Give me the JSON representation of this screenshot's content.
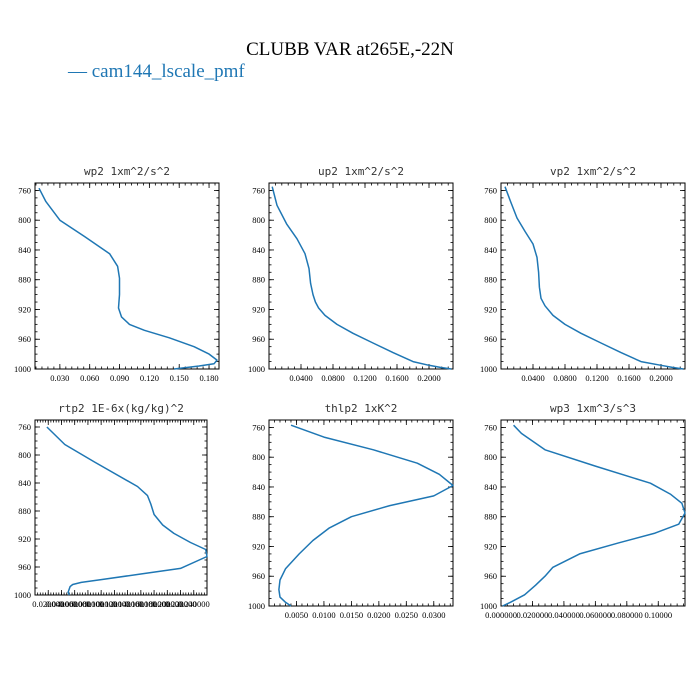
{
  "figure": {
    "title": "CLUBB VAR at265E,-22N",
    "legend": [
      {
        "label": "cam144_lscale_pmf",
        "color": "#1f77b4"
      }
    ]
  },
  "chart_data": [
    {
      "type": "line",
      "title": "wp2  1xm^2/s^2",
      "xlim": [
        0.005,
        0.19
      ],
      "ylim": [
        1000,
        750
      ],
      "xticks": [
        0.03,
        0.06,
        0.09,
        0.12,
        0.15,
        0.18
      ],
      "xtick_labels": [
        "0.030",
        "0.060",
        "0.090",
        "0.120",
        "0.150",
        "0.180"
      ],
      "yticks": [
        760,
        800,
        840,
        880,
        920,
        960,
        1000
      ],
      "x": [
        0.009,
        0.016,
        0.03,
        0.055,
        0.08,
        0.088,
        0.09,
        0.09,
        0.089,
        0.092,
        0.1,
        0.115,
        0.14,
        0.165,
        0.18,
        0.188,
        0.185,
        0.17,
        0.145
      ],
      "y": [
        757,
        775,
        800,
        822,
        845,
        862,
        878,
        900,
        918,
        930,
        940,
        948,
        958,
        970,
        980,
        988,
        993,
        996,
        1000
      ]
    },
    {
      "type": "line",
      "title": "up2  1xm^2/s^2",
      "xlim": [
        0.0,
        0.23
      ],
      "ylim": [
        1000,
        750
      ],
      "xticks": [
        0.04,
        0.08,
        0.12,
        0.16,
        0.2
      ],
      "xtick_labels": [
        "0.0400",
        "0.0800",
        "0.1200",
        "0.1600",
        "0.2000"
      ],
      "yticks": [
        760,
        800,
        840,
        880,
        920,
        960,
        1000
      ],
      "x": [
        0.004,
        0.01,
        0.022,
        0.035,
        0.045,
        0.05,
        0.052,
        0.055,
        0.058,
        0.062,
        0.07,
        0.085,
        0.105,
        0.13,
        0.155,
        0.18,
        0.2,
        0.215,
        0.228
      ],
      "y": [
        755,
        780,
        805,
        825,
        845,
        865,
        885,
        900,
        910,
        918,
        928,
        940,
        952,
        965,
        978,
        990,
        995,
        998,
        1000
      ]
    },
    {
      "type": "line",
      "title": "vp2  1xm^2/s^2",
      "xlim": [
        0.0,
        0.23
      ],
      "ylim": [
        1000,
        750
      ],
      "xticks": [
        0.04,
        0.08,
        0.12,
        0.16,
        0.2
      ],
      "xtick_labels": [
        "0.0400",
        "0.0800",
        "0.1200",
        "0.1600",
        "0.2000"
      ],
      "yticks": [
        760,
        800,
        840,
        880,
        920,
        960,
        1000
      ],
      "x": [
        0.005,
        0.012,
        0.02,
        0.03,
        0.04,
        0.045,
        0.047,
        0.048,
        0.05,
        0.055,
        0.065,
        0.08,
        0.1,
        0.125,
        0.15,
        0.175,
        0.2,
        0.215,
        0.228
      ],
      "y": [
        755,
        775,
        797,
        815,
        832,
        850,
        870,
        890,
        905,
        915,
        928,
        940,
        952,
        965,
        978,
        990,
        995,
        998,
        1000
      ]
    },
    {
      "type": "line",
      "title": "rtp2  1E-6x(kg/kg)^2",
      "xlim": [
        0.0,
        0.26
      ],
      "ylim": [
        1000,
        750
      ],
      "xticks": [
        0.02,
        0.04,
        0.06,
        0.08,
        0.1,
        0.12,
        0.14,
        0.16,
        0.18,
        0.2,
        0.22,
        0.24
      ],
      "xtick_labels": [
        "0.020000",
        "0.040000",
        "0.060000",
        "0.080000",
        "0.100000",
        "0.120000",
        "0.140000",
        "0.160000",
        "0.180000",
        "0.200000",
        "0.220000",
        "0.240000"
      ],
      "yticks": [
        760,
        800,
        840,
        880,
        920,
        960,
        1000
      ],
      "x": [
        0.018,
        0.045,
        0.09,
        0.155,
        0.17,
        0.175,
        0.18,
        0.193,
        0.21,
        0.235,
        0.258,
        0.26,
        0.22,
        0.16,
        0.1,
        0.07,
        0.057,
        0.053,
        0.05,
        0.052
      ],
      "y": [
        760,
        785,
        810,
        845,
        858,
        870,
        885,
        900,
        912,
        925,
        935,
        945,
        962,
        970,
        978,
        982,
        985,
        988,
        996,
        1000
      ]
    },
    {
      "type": "line",
      "title": "thlp2  1xK^2",
      "xlim": [
        0.0,
        0.0335
      ],
      "ylim": [
        1000,
        750
      ],
      "xticks": [
        0.005,
        0.01,
        0.015,
        0.02,
        0.025,
        0.03
      ],
      "xtick_labels": [
        "0.0050",
        "0.0100",
        "0.0150",
        "0.0200",
        "0.0250",
        "0.0300"
      ],
      "yticks": [
        760,
        800,
        840,
        880,
        920,
        960,
        1000
      ],
      "x": [
        0.004,
        0.01,
        0.019,
        0.027,
        0.031,
        0.0335,
        0.03,
        0.022,
        0.015,
        0.011,
        0.008,
        0.0055,
        0.003,
        0.002,
        0.0018,
        0.002,
        0.003,
        0.004
      ],
      "y": [
        757,
        773,
        790,
        808,
        823,
        838,
        852,
        865,
        880,
        895,
        912,
        930,
        950,
        965,
        978,
        988,
        995,
        1000
      ]
    },
    {
      "type": "line",
      "title": "wp3  1xm^3/s^3",
      "xlim": [
        0.0,
        0.117
      ],
      "ylim": [
        1000,
        750
      ],
      "xticks": [
        0.0,
        0.02,
        0.04,
        0.06,
        0.08,
        0.1
      ],
      "xtick_labels": [
        "0.000000",
        "0.020000",
        "0.040000",
        "0.060000",
        "0.080000",
        "0.10000"
      ],
      "yticks": [
        760,
        800,
        840,
        880,
        920,
        960,
        1000
      ],
      "x": [
        0.008,
        0.013,
        0.028,
        0.06,
        0.095,
        0.108,
        0.115,
        0.117,
        0.113,
        0.098,
        0.075,
        0.05,
        0.033,
        0.028,
        0.022,
        0.015,
        0.006,
        0.001
      ],
      "y": [
        757,
        768,
        790,
        812,
        835,
        850,
        862,
        875,
        890,
        902,
        915,
        930,
        948,
        960,
        972,
        985,
        995,
        1000
      ]
    }
  ]
}
